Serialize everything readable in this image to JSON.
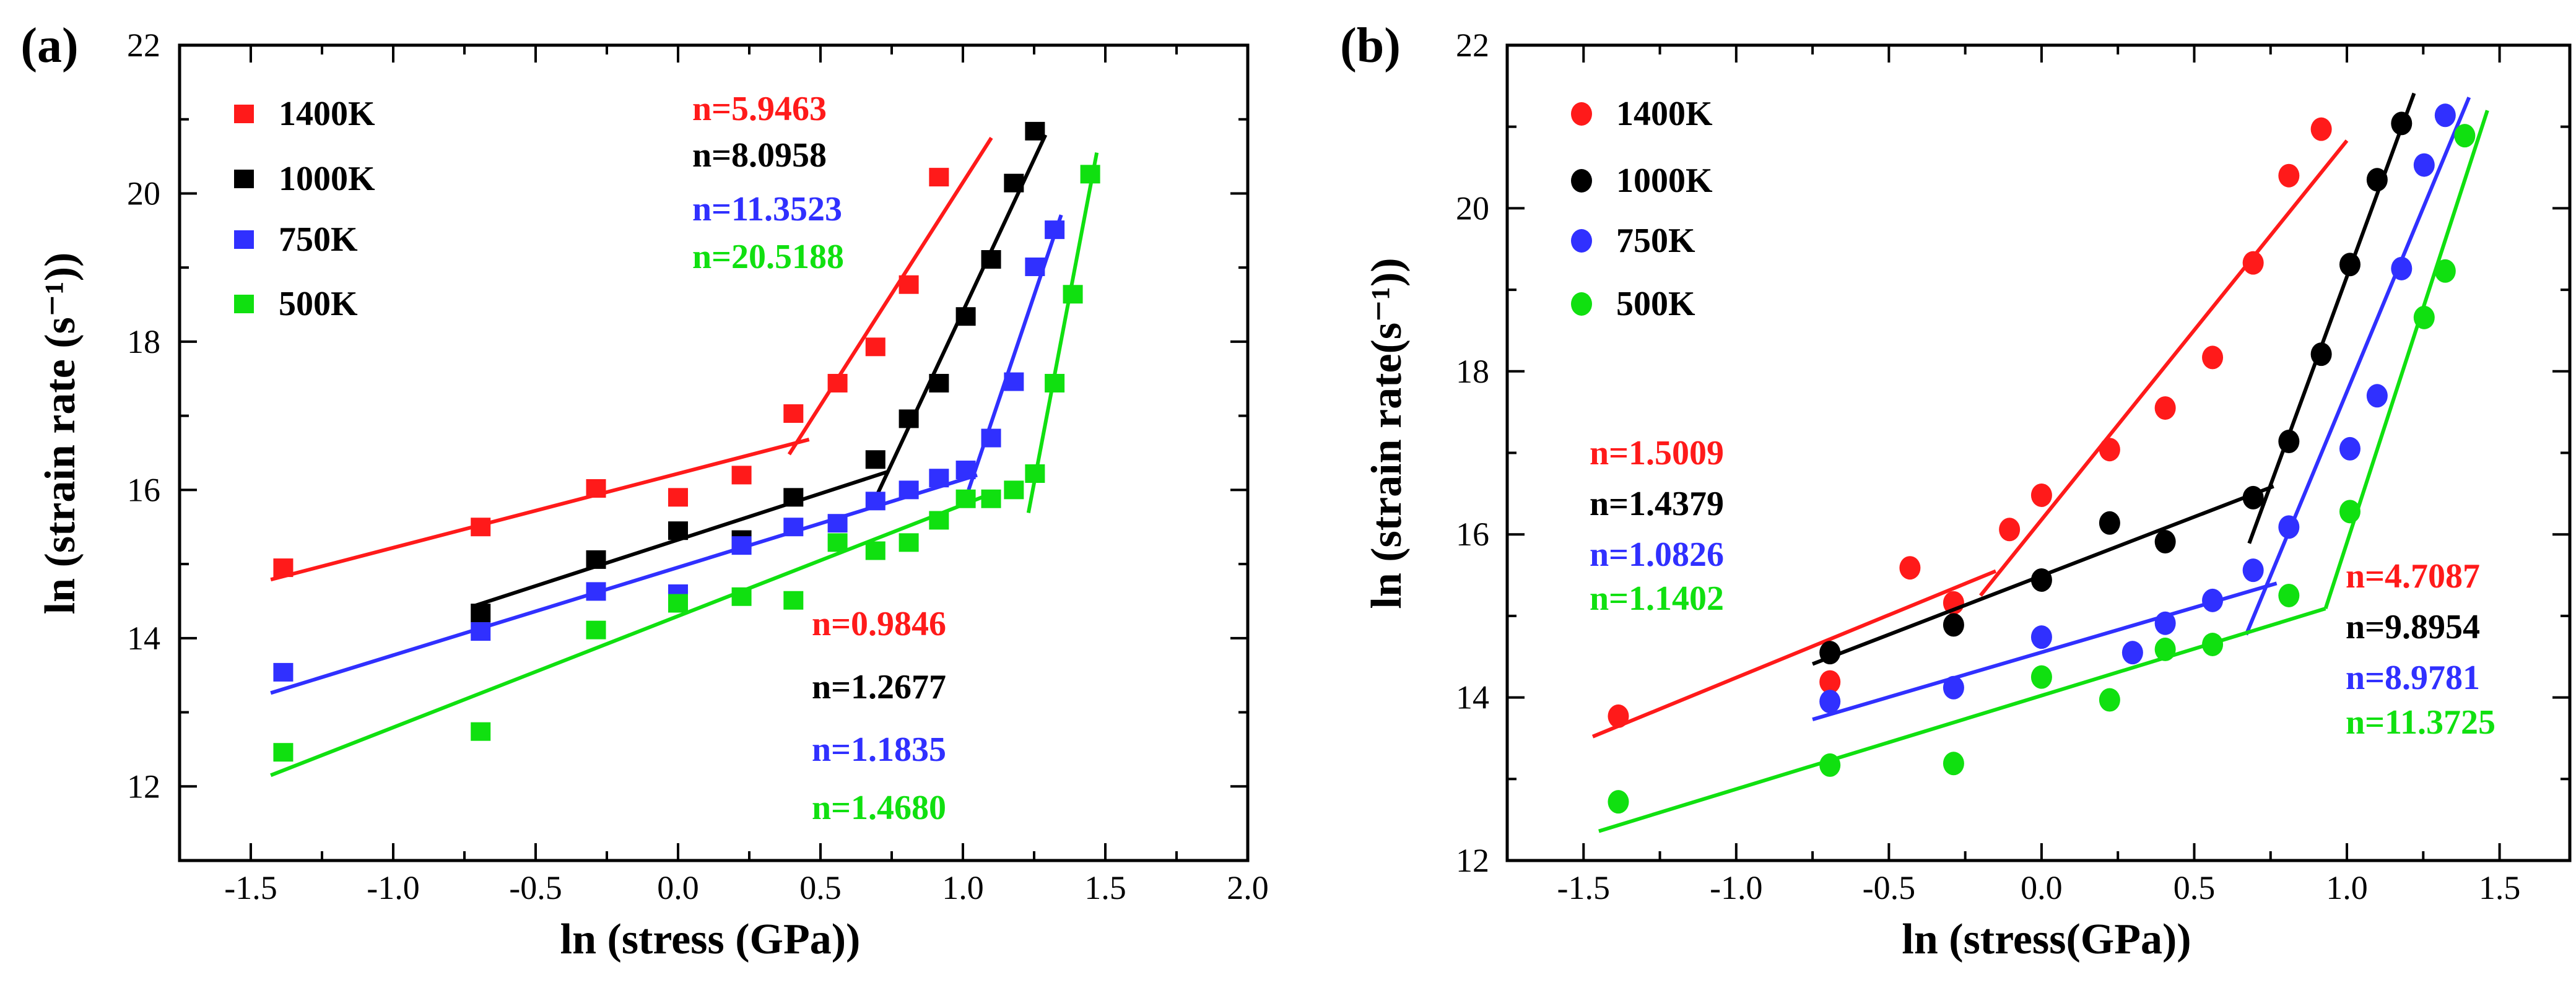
{
  "chart_data": [
    {
      "panel_label": "(a)",
      "type": "scatter",
      "xlabel": "ln (stress (GPa))",
      "ylabel": "ln (strain rate (s⁻¹))",
      "xlim": [
        -1.75,
        2.0
      ],
      "ylim": [
        11,
        22
      ],
      "xticks": [
        "-1.5",
        "-1.0",
        "-0.5",
        "0.0",
        "0.5",
        "1.0",
        "1.5",
        "2.0"
      ],
      "yticks": [
        "12",
        "14",
        "16",
        "18",
        "20",
        "22"
      ],
      "marker": "square",
      "legend_position": "top-left",
      "series": [
        {
          "name": "1400K",
          "color": "#ff1a1a",
          "points": [
            [
              -1.386,
              14.95
            ],
            [
              -0.693,
              15.5
            ],
            [
              -0.288,
              16.02
            ],
            [
              0,
              15.9
            ],
            [
              0.223,
              16.2
            ],
            [
              0.405,
              17.03
            ],
            [
              0.56,
              17.44
            ],
            [
              0.693,
              17.93
            ],
            [
              0.81,
              18.77
            ],
            [
              0.916,
              20.22
            ]
          ],
          "fits": [
            [
              [
                -1.43,
                14.79
              ],
              [
                0.46,
                16.68
              ]
            ],
            [
              [
                0.39,
                16.48
              ],
              [
                1.1,
                20.75
              ]
            ]
          ]
        },
        {
          "name": "1000K",
          "color": "#000000",
          "points": [
            [
              -0.693,
              14.34
            ],
            [
              -0.288,
              15.06
            ],
            [
              0,
              15.45
            ],
            [
              0.223,
              15.33
            ],
            [
              0.405,
              15.9
            ],
            [
              0.693,
              16.41
            ],
            [
              0.81,
              16.96
            ],
            [
              0.916,
              17.44
            ],
            [
              1.01,
              18.34
            ],
            [
              1.099,
              19.11
            ],
            [
              1.179,
              20.14
            ],
            [
              1.253,
              20.84
            ]
          ],
          "fits": [
            [
              [
                -0.72,
                14.43
              ],
              [
                0.74,
                16.25
              ]
            ],
            [
              [
                0.68,
                15.78
              ],
              [
                1.29,
                20.79
              ]
            ]
          ]
        },
        {
          "name": "750K",
          "color": "#3030ff",
          "points": [
            [
              -1.386,
              13.54
            ],
            [
              -0.693,
              14.09
            ],
            [
              -0.288,
              14.63
            ],
            [
              0,
              14.6
            ],
            [
              0.223,
              15.25
            ],
            [
              0.405,
              15.5
            ],
            [
              0.56,
              15.55
            ],
            [
              0.693,
              15.85
            ],
            [
              0.81,
              16.0
            ],
            [
              0.916,
              16.16
            ],
            [
              1.01,
              16.27
            ],
            [
              1.099,
              16.7
            ],
            [
              1.179,
              17.46
            ],
            [
              1.253,
              19.01
            ],
            [
              1.322,
              19.51
            ]
          ],
          "fits": [
            [
              [
                -1.43,
                13.26
              ],
              [
                1.05,
                16.2
              ]
            ],
            [
              [
                1.02,
                16.0
              ],
              [
                1.345,
                19.71
              ]
            ]
          ]
        },
        {
          "name": "500K",
          "color": "#10e010",
          "points": [
            [
              -1.386,
              12.46
            ],
            [
              -0.693,
              12.74
            ],
            [
              -0.288,
              14.11
            ],
            [
              0,
              14.47
            ],
            [
              0.223,
              14.56
            ],
            [
              0.405,
              14.51
            ],
            [
              0.56,
              15.29
            ],
            [
              0.693,
              15.18
            ],
            [
              0.81,
              15.29
            ],
            [
              0.916,
              15.59
            ],
            [
              1.01,
              15.88
            ],
            [
              1.099,
              15.88
            ],
            [
              1.179,
              16.0
            ],
            [
              1.253,
              16.22
            ],
            [
              1.322,
              17.44
            ],
            [
              1.386,
              18.64
            ],
            [
              1.447,
              20.26
            ]
          ],
          "fits": [
            [
              [
                -1.43,
                12.15
              ],
              [
                1.1,
                15.95
              ]
            ],
            [
              [
                1.23,
                15.69
              ],
              [
                1.47,
                20.55
              ]
            ]
          ]
        }
      ],
      "annotations_high": [
        "n=5.9463",
        "n=8.0958",
        "n=11.3523",
        "n=20.5188"
      ],
      "annotations_low": [
        "n=0.9846",
        "n=1.2677",
        "n=1.1835",
        "n=1.4680"
      ]
    },
    {
      "panel_label": "(b)",
      "type": "scatter",
      "xlabel": "ln (stress(GPa))",
      "ylabel": "ln (strain rate(s⁻¹))",
      "xlim": [
        -1.75,
        1.73
      ],
      "ylim": [
        12,
        22
      ],
      "xticks": [
        "-1.5",
        "-1.0",
        "-0.5",
        "0.0",
        "0.5",
        "1.0",
        "1.5"
      ],
      "yticks": [
        "12",
        "14",
        "16",
        "18",
        "20",
        "22"
      ],
      "marker": "circle",
      "legend_position": "top-left",
      "series": [
        {
          "name": "1400K",
          "color": "#ff1a1a",
          "points": [
            [
              -1.386,
              13.77
            ],
            [
              -0.693,
              14.19
            ],
            [
              -0.431,
              15.59
            ],
            [
              -0.288,
              15.16
            ],
            [
              -0.105,
              16.06
            ],
            [
              0,
              16.48
            ],
            [
              0.223,
              17.04
            ],
            [
              0.405,
              17.55
            ],
            [
              0.56,
              18.17
            ],
            [
              0.693,
              19.33
            ],
            [
              0.81,
              20.4
            ],
            [
              0.916,
              20.97
            ]
          ],
          "fits": [
            [
              [
                -1.47,
                13.52
              ],
              [
                -0.15,
                15.55
              ]
            ],
            [
              [
                -0.2,
                15.25
              ],
              [
                1.0,
                20.83
              ]
            ]
          ]
        },
        {
          "name": "1000K",
          "color": "#000000",
          "points": [
            [
              -0.693,
              14.55
            ],
            [
              -0.288,
              14.89
            ],
            [
              0,
              15.44
            ],
            [
              0.223,
              16.14
            ],
            [
              0.405,
              15.91
            ],
            [
              0.693,
              16.45
            ],
            [
              0.81,
              17.14
            ],
            [
              0.916,
              18.21
            ],
            [
              1.01,
              19.31
            ],
            [
              1.099,
              20.35
            ],
            [
              1.179,
              21.04
            ]
          ],
          "fits": [
            [
              [
                -0.75,
                14.41
              ],
              [
                0.76,
                16.59
              ]
            ],
            [
              [
                0.68,
                15.89
              ],
              [
                1.22,
                21.41
              ]
            ]
          ]
        },
        {
          "name": "750K",
          "color": "#3030ff",
          "points": [
            [
              -0.693,
              13.95
            ],
            [
              -0.288,
              14.12
            ],
            [
              0,
              14.74
            ],
            [
              0.298,
              14.55
            ],
            [
              0.405,
              14.91
            ],
            [
              0.56,
              15.19
            ],
            [
              0.693,
              15.56
            ],
            [
              0.81,
              16.09
            ],
            [
              1.01,
              17.05
            ],
            [
              1.099,
              17.7
            ],
            [
              1.179,
              19.26
            ],
            [
              1.253,
              20.53
            ],
            [
              1.322,
              21.14
            ]
          ],
          "fits": [
            [
              [
                -0.75,
                13.73
              ],
              [
                0.77,
                15.4
              ]
            ],
            [
              [
                0.67,
                14.77
              ],
              [
                1.4,
                21.36
              ]
            ]
          ]
        },
        {
          "name": "500K",
          "color": "#10e010",
          "points": [
            [
              -1.386,
              12.72
            ],
            [
              -0.693,
              13.17
            ],
            [
              -0.288,
              13.19
            ],
            [
              0,
              14.25
            ],
            [
              0.223,
              13.97
            ],
            [
              0.405,
              14.59
            ],
            [
              0.56,
              14.65
            ],
            [
              0.81,
              15.25
            ],
            [
              1.01,
              16.28
            ],
            [
              1.253,
              18.66
            ],
            [
              1.322,
              19.23
            ],
            [
              1.386,
              20.89
            ]
          ],
          "fits": [
            [
              [
                -1.45,
                12.36
              ],
              [
                0.93,
                15.09
              ]
            ],
            [
              [
                0.93,
                15.09
              ],
              [
                1.46,
                21.2
              ]
            ]
          ]
        }
      ],
      "annotations_high": [
        "n=4.7087",
        "n=9.8954",
        "n=8.9781",
        "n=11.3725"
      ],
      "annotations_low": [
        "n=1.5009",
        "n=1.4379",
        "n=1.0826",
        "n=1.1402"
      ]
    }
  ]
}
